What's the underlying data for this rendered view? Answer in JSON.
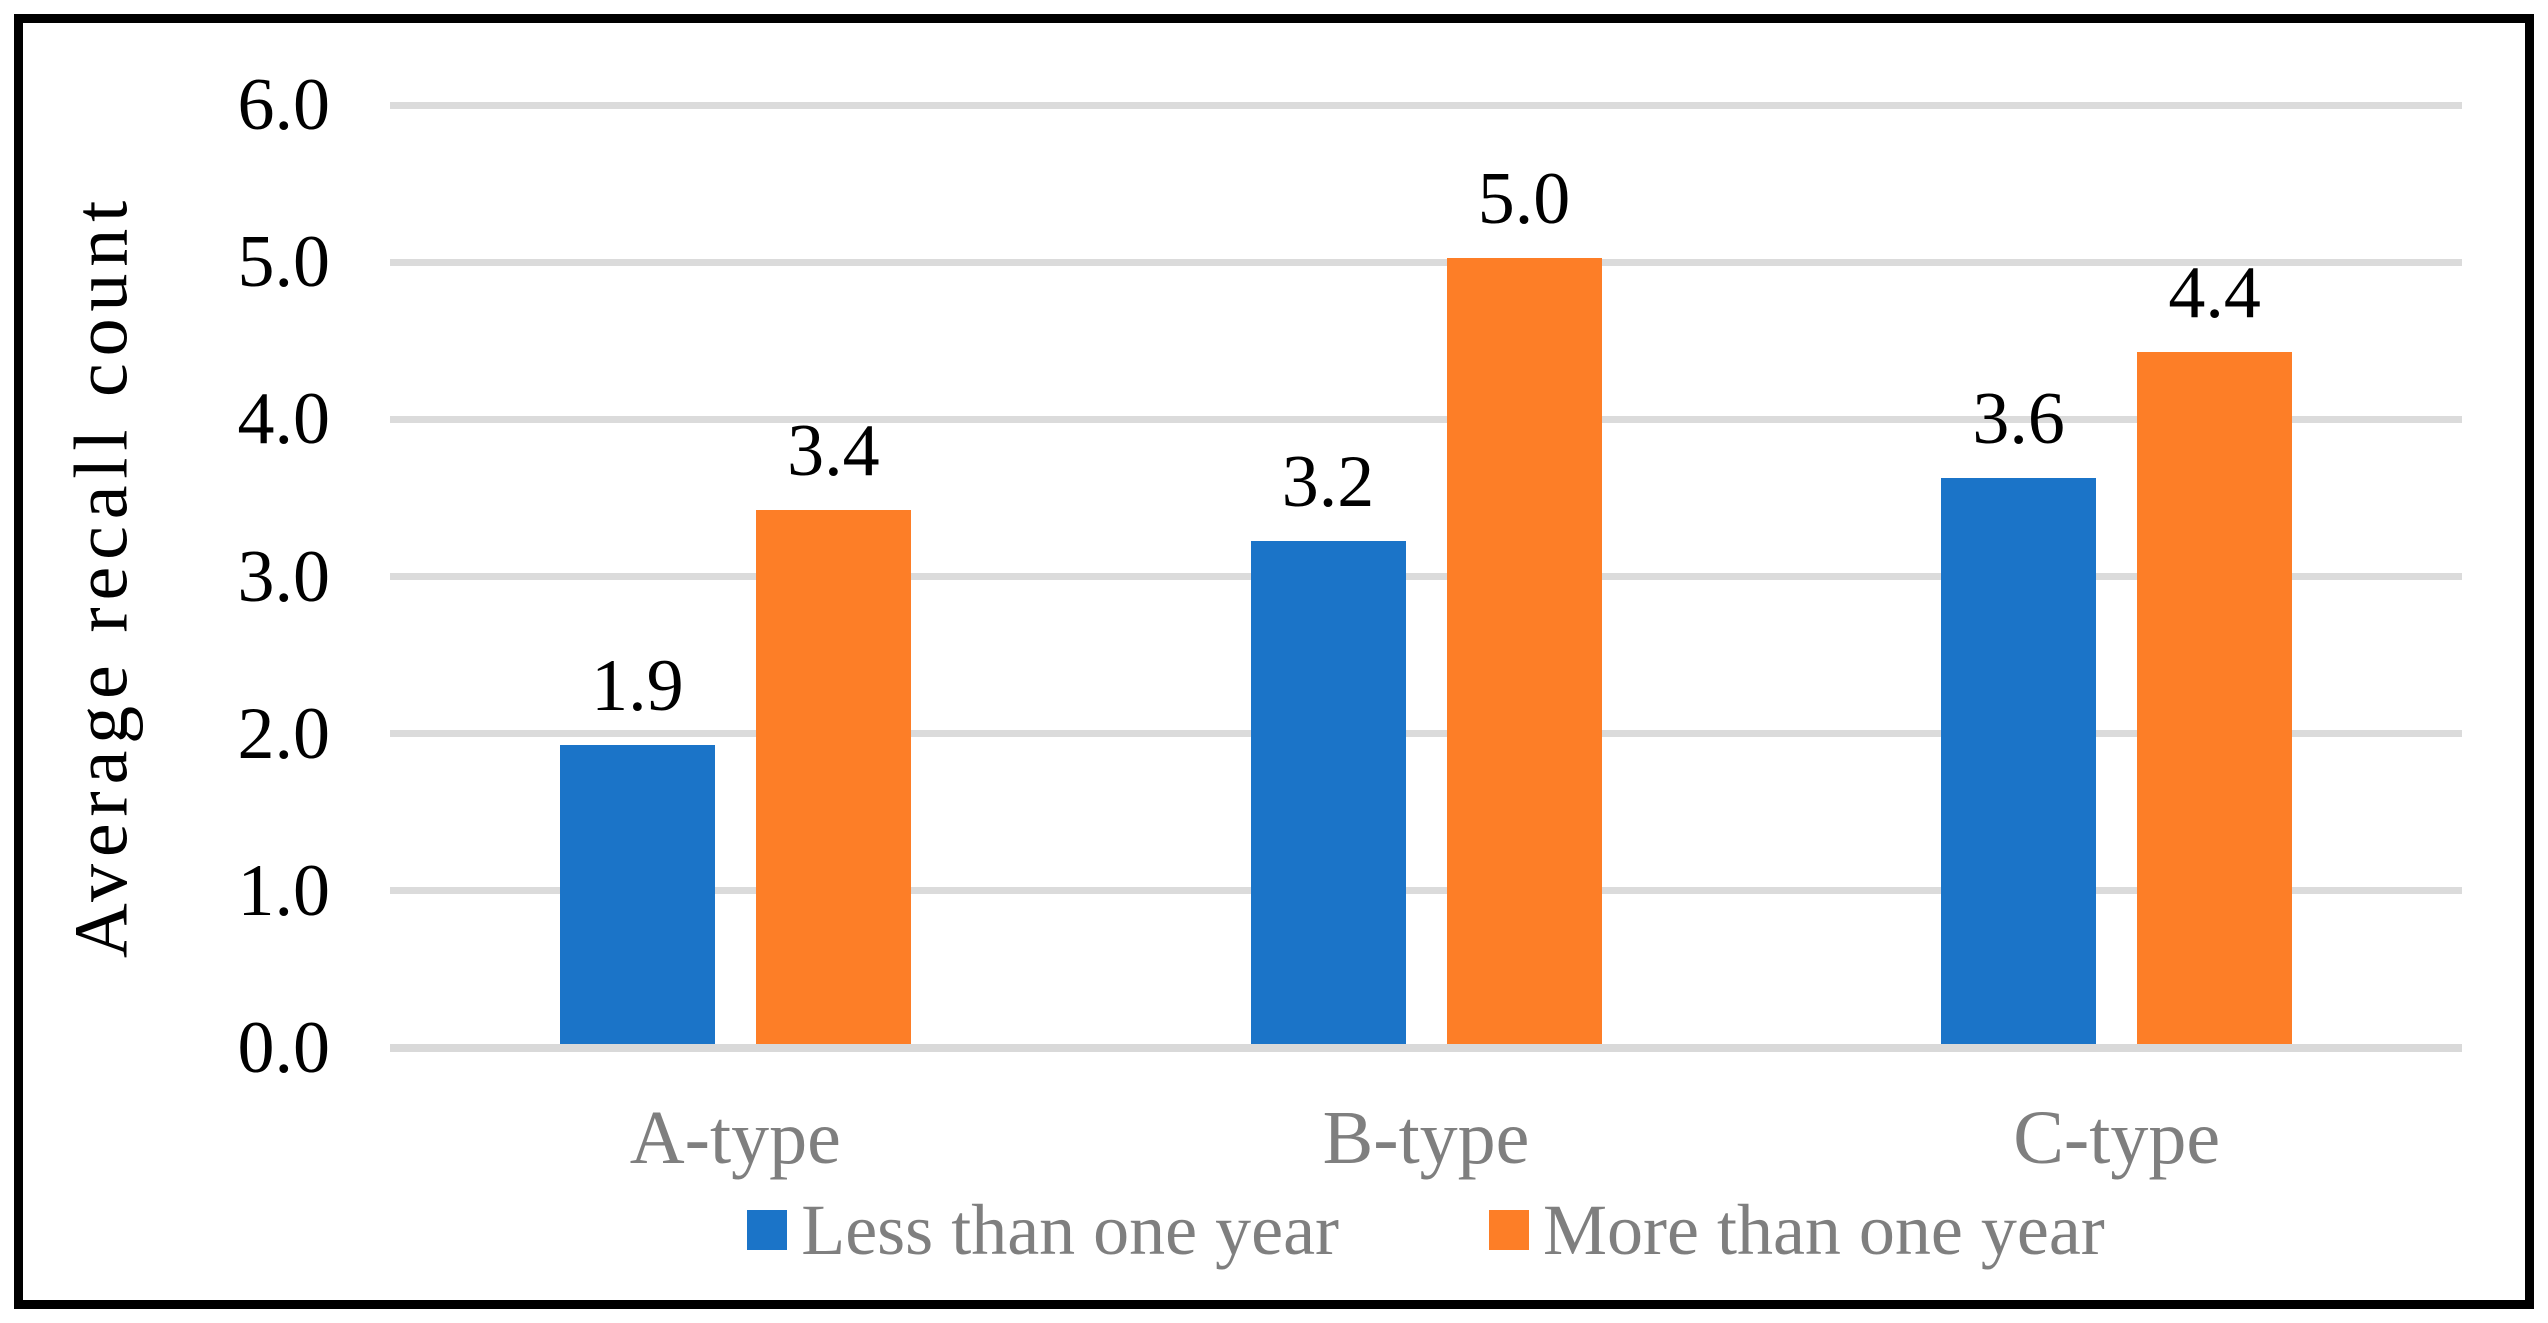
{
  "chart_data": {
    "type": "bar",
    "title": "",
    "xlabel": "",
    "ylabel": "Average recall count",
    "categories": [
      "A-type",
      "B-type",
      "C-type"
    ],
    "series": [
      {
        "name": "Less than one year",
        "color": "#1B74C8",
        "values": [
          1.9,
          3.2,
          3.6
        ],
        "labels": [
          "1.9",
          "3.2",
          "3.6"
        ]
      },
      {
        "name": "More than one year",
        "color": "#FD7E27",
        "values": [
          3.4,
          5.0,
          4.4
        ],
        "labels": [
          "3.4",
          "5.0",
          "4.4"
        ]
      }
    ],
    "ylim": [
      0,
      6
    ],
    "ytick_step": 1.0,
    "yticks": [
      "0.0",
      "1.0",
      "2.0",
      "3.0",
      "4.0",
      "5.0",
      "6.0"
    ],
    "grid": true,
    "legend_position": "bottom"
  },
  "colors": {
    "background": "#FFFFFF",
    "border": "#000000",
    "gridline": "#DBDBDB",
    "axis_line": "#D9D9D9",
    "tick_text": "#000000",
    "value_label_text": "#000000",
    "category_text": "#7F7F7F",
    "legend_text": "#7F7F7F"
  }
}
